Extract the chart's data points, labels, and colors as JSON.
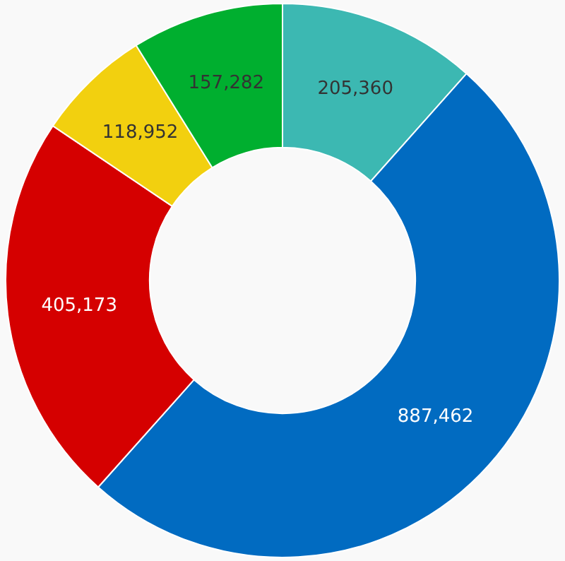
{
  "chart_data": {
    "type": "donut",
    "categories": [
      null,
      null,
      null,
      null,
      null
    ],
    "values": [
      205360,
      887462,
      405173,
      118952,
      157282
    ],
    "value_labels": [
      "205,360",
      "887,462",
      "405,173",
      "118,952",
      "157,282"
    ],
    "colors": [
      "#3cb8b2",
      "#016bc1",
      "#d50000",
      "#f2d00f",
      "#00af2f"
    ],
    "legend": false
  }
}
